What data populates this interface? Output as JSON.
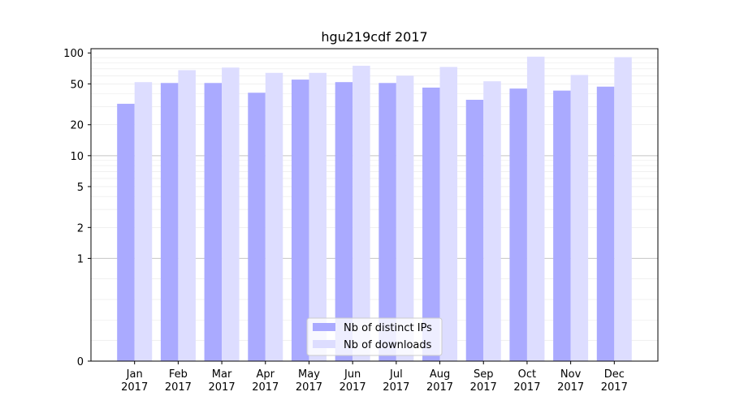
{
  "chart_data": {
    "type": "bar",
    "title": "hgu219cdf 2017",
    "xlabel": "",
    "ylabel": "",
    "y_scale": "symlog",
    "ylim": [
      0,
      110
    ],
    "yticks": [
      0,
      1,
      2,
      5,
      10,
      20,
      50,
      100
    ],
    "ytick_labels": [
      "0",
      "1",
      "2",
      "5",
      "10",
      "20",
      "50",
      "100"
    ],
    "categories": [
      [
        "Jan",
        "2017"
      ],
      [
        "Feb",
        "2017"
      ],
      [
        "Mar",
        "2017"
      ],
      [
        "Apr",
        "2017"
      ],
      [
        "May",
        "2017"
      ],
      [
        "Jun",
        "2017"
      ],
      [
        "Jul",
        "2017"
      ],
      [
        "Aug",
        "2017"
      ],
      [
        "Sep",
        "2017"
      ],
      [
        "Oct",
        "2017"
      ],
      [
        "Nov",
        "2017"
      ],
      [
        "Dec",
        "2017"
      ]
    ],
    "series": [
      {
        "name": "Nb of distinct IPs",
        "color": "#aaaaff",
        "values": [
          32,
          51,
          51,
          41,
          55,
          52,
          51,
          46,
          35,
          45,
          43,
          47
        ]
      },
      {
        "name": "Nb of downloads",
        "color": "#ddddff",
        "values": [
          52,
          68,
          72,
          64,
          64,
          75,
          60,
          73,
          53,
          92,
          61,
          91
        ]
      }
    ],
    "grid": true,
    "legend_position": "lower-center"
  }
}
